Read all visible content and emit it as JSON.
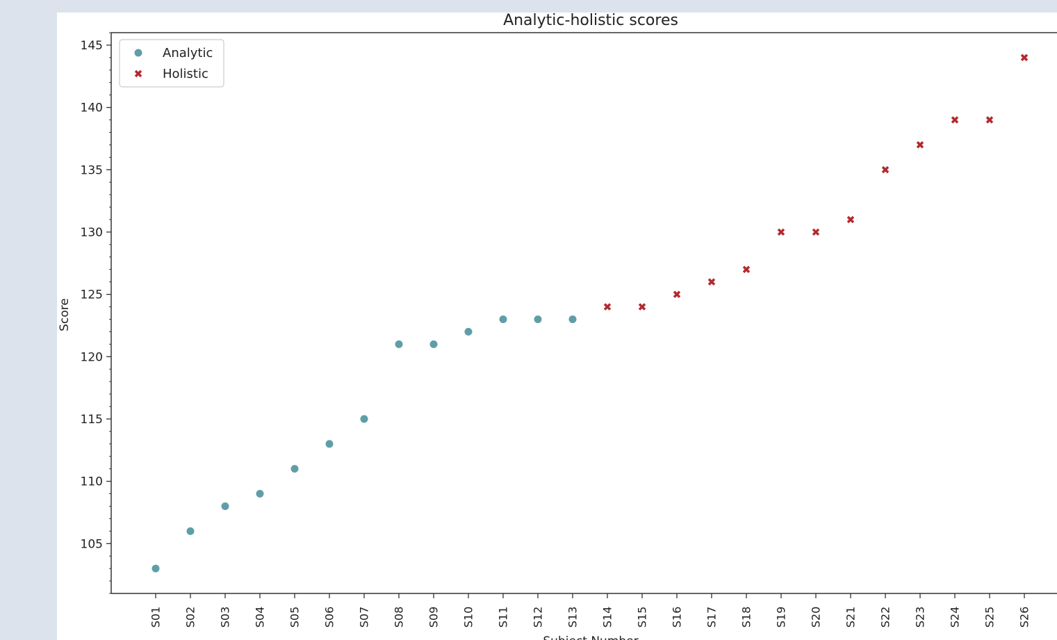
{
  "chart_data": {
    "type": "scatter",
    "title": "Analytic-holistic scores",
    "xlabel": "Subject Number",
    "ylabel": "Score",
    "ylim": [
      101,
      146
    ],
    "y_ticks": [
      105,
      110,
      115,
      120,
      125,
      130,
      135,
      140,
      145
    ],
    "categories": [
      "S01",
      "S02",
      "S03",
      "S04",
      "S05",
      "S06",
      "S07",
      "S08",
      "S09",
      "S10",
      "S11",
      "S12",
      "S13",
      "S14",
      "S15",
      "S16",
      "S17",
      "S18",
      "S19",
      "S20",
      "S21",
      "S22",
      "S23",
      "S24",
      "S25",
      "S26"
    ],
    "series": [
      {
        "name": "Analytic",
        "marker": "circle",
        "color": "#5f9ea8",
        "points": [
          {
            "x": "S01",
            "y": 103
          },
          {
            "x": "S02",
            "y": 106
          },
          {
            "x": "S03",
            "y": 108
          },
          {
            "x": "S04",
            "y": 109
          },
          {
            "x": "S05",
            "y": 111
          },
          {
            "x": "S06",
            "y": 113
          },
          {
            "x": "S07",
            "y": 115
          },
          {
            "x": "S08",
            "y": 121
          },
          {
            "x": "S09",
            "y": 121
          },
          {
            "x": "S10",
            "y": 122
          },
          {
            "x": "S11",
            "y": 123
          },
          {
            "x": "S12",
            "y": 123
          },
          {
            "x": "S13",
            "y": 123
          }
        ]
      },
      {
        "name": "Holistic",
        "marker": "x",
        "color": "#b22a2e",
        "points": [
          {
            "x": "S14",
            "y": 124
          },
          {
            "x": "S15",
            "y": 124
          },
          {
            "x": "S16",
            "y": 125
          },
          {
            "x": "S17",
            "y": 126
          },
          {
            "x": "S18",
            "y": 127
          },
          {
            "x": "S19",
            "y": 130
          },
          {
            "x": "S20",
            "y": 130
          },
          {
            "x": "S21",
            "y": 131
          },
          {
            "x": "S22",
            "y": 135
          },
          {
            "x": "S23",
            "y": 137
          },
          {
            "x": "S24",
            "y": 139
          },
          {
            "x": "S25",
            "y": 139
          },
          {
            "x": "S26",
            "y": 144
          }
        ]
      }
    ],
    "legend": "top-left",
    "grid": false
  }
}
